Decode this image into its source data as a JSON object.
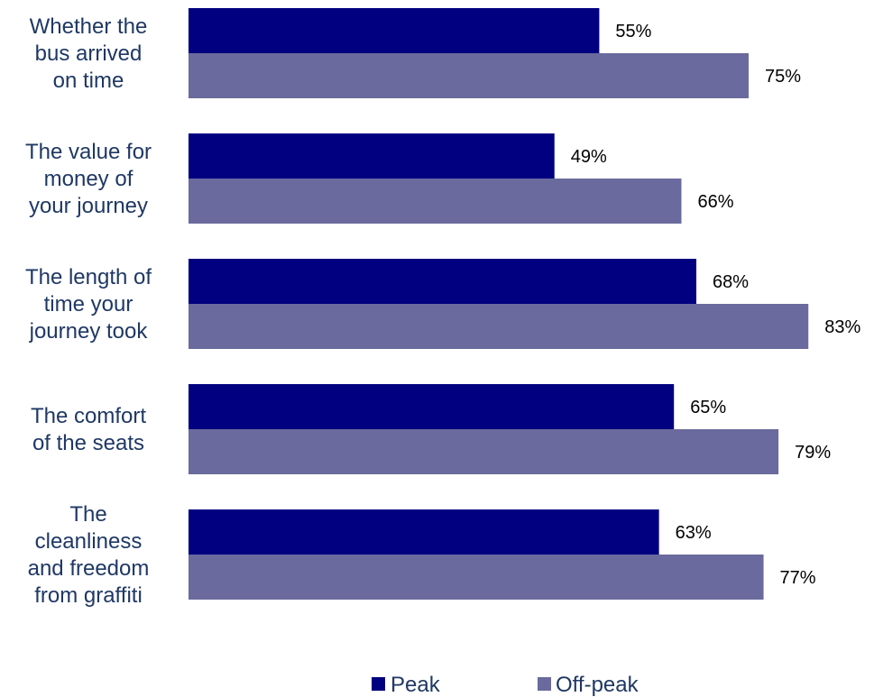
{
  "chart_data": {
    "type": "bar",
    "orientation": "horizontal",
    "categories": [
      [
        "Whether the",
        "bus arrived",
        "on time"
      ],
      [
        "The value for",
        "money of",
        "your journey"
      ],
      [
        "The length of",
        "time your",
        "journey took"
      ],
      [
        "The comfort",
        "of the seats"
      ],
      [
        "The",
        "cleanliness",
        "and freedom",
        "from graffiti"
      ]
    ],
    "series": [
      {
        "name": "Peak",
        "color": "#000080",
        "values": [
          55,
          49,
          68,
          65,
          63
        ],
        "labels": [
          "55%",
          "49%",
          "68%",
          "65%",
          "63%"
        ]
      },
      {
        "name": "Off-peak",
        "color": "#6a6a9e",
        "values": [
          75,
          66,
          83,
          79,
          77
        ],
        "labels": [
          "75%",
          "66%",
          "83%",
          "79%",
          "77%"
        ]
      }
    ],
    "xlim": [
      0,
      100
    ],
    "grid": false,
    "legend": "bottom-center"
  }
}
